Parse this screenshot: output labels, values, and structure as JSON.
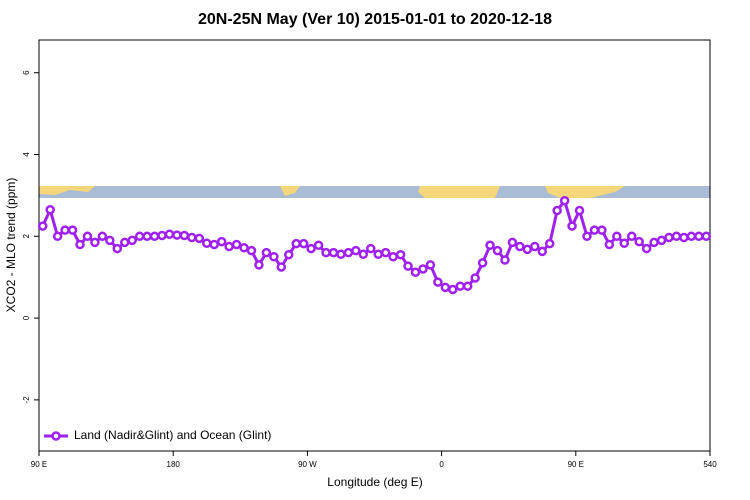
{
  "chart_data": {
    "type": "line",
    "title": "20N-25N May (Ver 10)   2015-01-01 to 2020-12-18",
    "x_label": "Longitude (deg E)",
    "y_label": "XCO2 - MLO trend (ppm)",
    "xlim": [
      90,
      540
    ],
    "xticks": [
      {
        "value": 90,
        "label": "90 E"
      },
      180,
      {
        "value": 270,
        "label": "90 W"
      },
      {
        "value": 360,
        "label": "0"
      },
      {
        "value": 450,
        "label": "90 E"
      },
      540
    ],
    "ylim": [
      -3.25,
      6.8
    ],
    "yticks": [
      -2,
      0,
      2,
      4,
      6
    ],
    "legend": "bottom-left",
    "x": [
      92.5,
      97.5,
      102.5,
      107.5,
      112.5,
      117.5,
      122.5,
      127.5,
      132.5,
      137.5,
      142.5,
      147.5,
      152.5,
      157.5,
      162.5,
      167.5,
      172.5,
      177.5,
      182.5,
      187.5,
      192.5,
      197.5,
      202.5,
      207.5,
      212.5,
      217.5,
      222.5,
      227.5,
      232.5,
      237.5,
      242.5,
      247.5,
      252.5,
      257.5,
      262.5,
      267.5,
      272.5,
      277.5,
      282.5,
      287.5,
      292.5,
      297.5,
      302.5,
      307.5,
      312.5,
      317.5,
      322.5,
      327.5,
      332.5,
      337.5,
      342.5,
      347.5,
      352.5,
      357.5,
      362.5,
      367.5,
      372.5,
      377.5,
      382.5,
      387.5,
      392.5,
      397.5,
      402.5,
      407.5,
      412.5,
      417.5,
      422.5,
      427.5,
      432.5,
      437.5,
      442.5,
      447.5,
      452.5,
      457.5,
      462.5,
      467.5,
      472.5,
      477.5,
      482.5,
      487.5,
      492.5,
      497.5,
      502.5,
      507.5,
      512.5,
      517.5,
      522.5,
      527.5,
      532.5,
      537.5
    ],
    "series": [
      {
        "name": "Land (Nadir&Glint) and Ocean (Glint)",
        "color": "#a020f0",
        "values": [
          2.25,
          2.65,
          2.0,
          2.15,
          2.15,
          1.8,
          2.0,
          1.85,
          2.0,
          1.9,
          1.7,
          1.85,
          1.9,
          2.0,
          2.0,
          2.0,
          2.02,
          2.05,
          2.03,
          2.02,
          1.97,
          1.95,
          1.83,
          1.8,
          1.87,
          1.75,
          1.8,
          1.72,
          1.65,
          1.3,
          1.6,
          1.5,
          1.25,
          1.55,
          1.82,
          1.82,
          1.7,
          1.78,
          1.6,
          1.6,
          1.56,
          1.6,
          1.65,
          1.56,
          1.7,
          1.56,
          1.6,
          1.5,
          1.55,
          1.27,
          1.12,
          1.2,
          1.3,
          0.88,
          0.75,
          0.7,
          0.78,
          0.78,
          0.98,
          1.35,
          1.78,
          1.65,
          1.42,
          1.85,
          1.75,
          1.68,
          1.75,
          1.63,
          1.82,
          2.63,
          2.87,
          2.25,
          2.63,
          2.0,
          2.15,
          2.15,
          1.8,
          2.0,
          1.83,
          2.0,
          1.87,
          1.7,
          1.85,
          1.9,
          1.97,
          2.0,
          1.97,
          2.0,
          2.0,
          2.0
        ]
      }
    ]
  }
}
